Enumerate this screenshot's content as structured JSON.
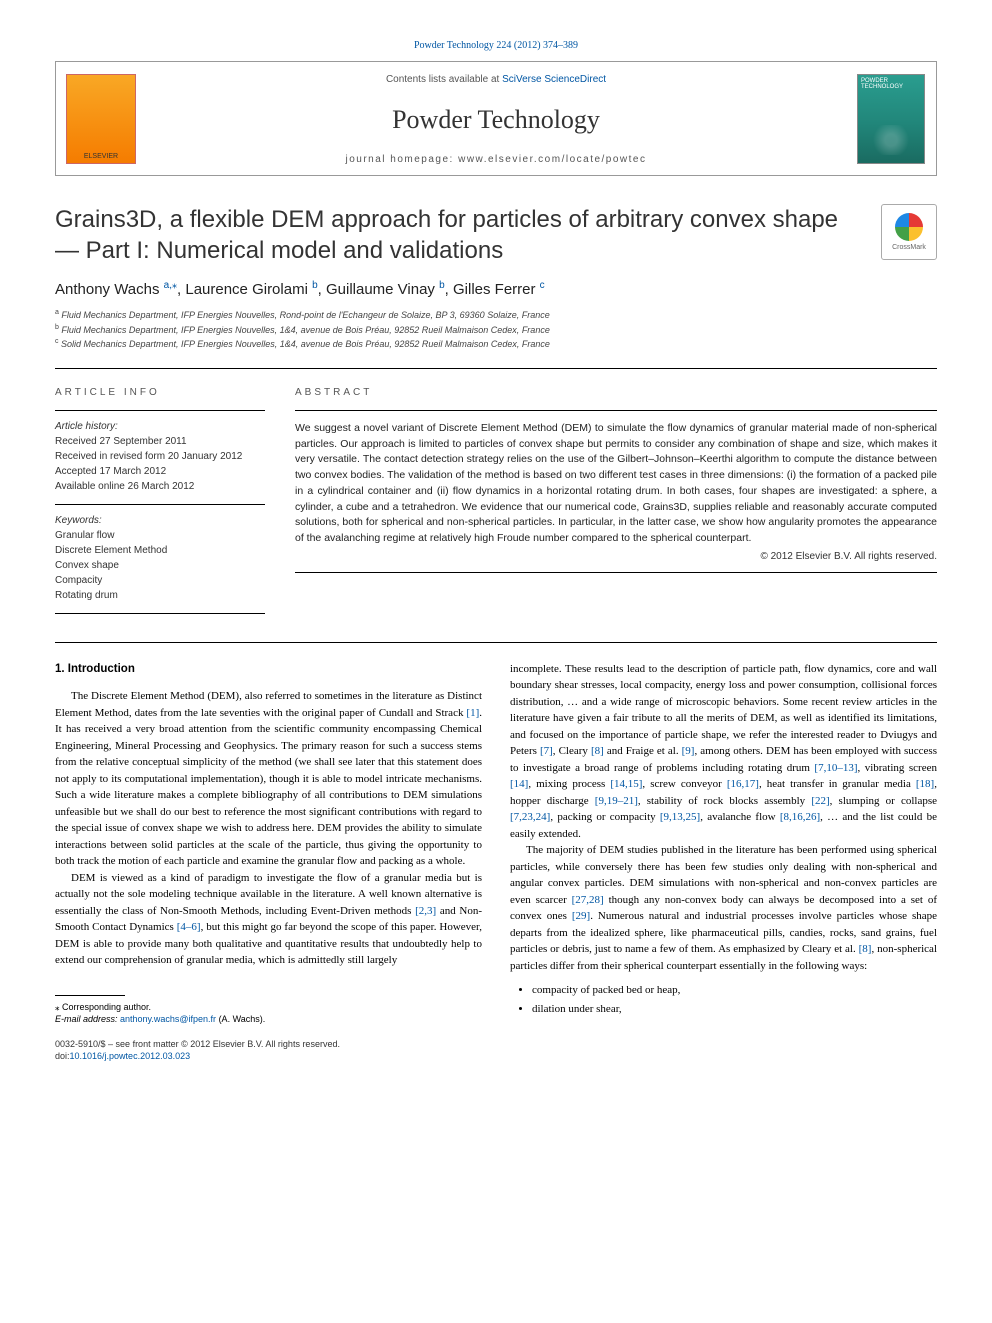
{
  "top_link": {
    "label": "Powder Technology 224 (2012) 374–389",
    "href": "#"
  },
  "header": {
    "elsevier_label": "ELSEVIER",
    "contents_prefix": "Contents lists available at ",
    "contents_link": "SciVerse ScienceDirect",
    "journal_name": "Powder Technology",
    "homepage_line": "journal homepage: www.elsevier.com/locate/powtec",
    "cover_text": "POWDER TECHNOLOGY"
  },
  "crossmark_label": "CrossMark",
  "title": "Grains3D, a flexible DEM approach for particles of arbitrary convex shape — Part I: Numerical model and validations",
  "authors_html": "Anthony Wachs <span class='sup'>a,</span><span class='star sup'>⁎</span>, Laurence Girolami <span class='sup'>b</span>, Guillaume Vinay <span class='sup'>b</span>, Gilles Ferrer <span class='sup'>c</span>",
  "affiliations": [
    {
      "sup": "a",
      "text": "Fluid Mechanics Department, IFP Energies Nouvelles, Rond-point de l'Echangeur de Solaize, BP 3, 69360 Solaize, France"
    },
    {
      "sup": "b",
      "text": "Fluid Mechanics Department, IFP Energies Nouvelles, 1&4, avenue de Bois Préau, 92852 Rueil Malmaison Cedex, France"
    },
    {
      "sup": "c",
      "text": "Solid Mechanics Department, IFP Energies Nouvelles, 1&4, avenue de Bois Préau, 92852 Rueil Malmaison Cedex, France"
    }
  ],
  "article_info": {
    "heading": "ARTICLE INFO",
    "history_label": "Article history:",
    "history": [
      "Received 27 September 2011",
      "Received in revised form 20 January 2012",
      "Accepted 17 March 2012",
      "Available online 26 March 2012"
    ],
    "keywords_label": "Keywords:",
    "keywords": [
      "Granular flow",
      "Discrete Element Method",
      "Convex shape",
      "Compacity",
      "Rotating drum"
    ]
  },
  "abstract": {
    "heading": "ABSTRACT",
    "text": "We suggest a novel variant of Discrete Element Method (DEM) to simulate the flow dynamics of granular material made of non-spherical particles. Our approach is limited to particles of convex shape but permits to consider any combination of shape and size, which makes it very versatile. The contact detection strategy relies on the use of the Gilbert–Johnson–Keerthi algorithm to compute the distance between two convex bodies. The validation of the method is based on two different test cases in three dimensions: (i) the formation of a packed pile in a cylindrical container and (ii) flow dynamics in a horizontal rotating drum. In both cases, four shapes are investigated: a sphere, a cylinder, a cube and a tetrahedron. We evidence that our numerical code, Grains3D, supplies reliable and reasonably accurate computed solutions, both for spherical and non-spherical particles. In particular, in the latter case, we show how angularity promotes the appearance of the avalanching regime at relatively high Froude number compared to the spherical counterpart.",
    "copyright": "© 2012 Elsevier B.V. All rights reserved."
  },
  "introduction": {
    "heading": "1. Introduction",
    "p1a": "The Discrete Element Method (DEM), also referred to sometimes in the literature as Distinct Element Method, dates from the late seventies with the original paper of Cundall and Strack ",
    "r1": "[1]",
    "p1b": ". It has received a very broad attention from the scientific community encompassing Chemical Engineering, Mineral Processing and Geophysics. The primary reason for such a success stems from the relative conceptual simplicity of the method (we shall see later that this statement does not apply to its computational implementation), though it is able to model intricate mechanisms. Such a wide literature makes a complete bibliography of all contributions to DEM simulations unfeasible but we shall do our best to reference the most significant contributions with regard to the special issue of convex shape we wish to address here. DEM provides the ability to simulate interactions between solid particles at the scale of the particle, thus giving the opportunity to both track the motion of each particle and examine the granular flow and packing as a whole.",
    "p2a": "DEM is viewed as a kind of paradigm to investigate the flow of a granular media but is actually not the sole modeling technique available in the literature. A well known alternative is essentially the class of Non-Smooth Methods, including Event-Driven methods ",
    "r2": "[2,3]",
    "p2b": " and Non-Smooth Contact Dynamics ",
    "r3": "[4–6]",
    "p2c": ", but this might go far beyond the scope of this paper. However, DEM is able to provide many both qualitative and quantitative results that undoubtedly help to extend our comprehension of granular media, which is admittedly still largely ",
    "p2d": "incomplete. These results lead to the description of particle path, flow dynamics, core and wall boundary shear stresses, local compacity, energy loss and power consumption, collisional forces distribution, … and a wide range of microscopic behaviors. Some recent review articles in the literature have given a fair tribute to all the merits of DEM, as well as identified its limitations, and focused on the importance of particle shape, we refer the interested reader to Dviugys and Peters ",
    "r4": "[7]",
    "p2e": ", Cleary ",
    "r5": "[8]",
    "p2f": " and Fraige et al. ",
    "r6": "[9]",
    "p2g": ", among others. DEM has been employed with success to investigate a broad range of problems including rotating drum ",
    "r7": "[7,10–13]",
    "p2h": ", vibrating screen ",
    "r8": "[14]",
    "p2i": ", mixing process ",
    "r9": "[14,15]",
    "p2j": ", screw conveyor ",
    "r10": "[16,17]",
    "p2k": ", heat transfer in granular media ",
    "r11": "[18]",
    "p2l": ", hopper discharge ",
    "r12": "[9,19–21]",
    "p2m": ", stability of rock blocks assembly ",
    "r13": "[22]",
    "p2n": ", slumping or collapse ",
    "r14": "[7,23,24]",
    "p2o": ", packing or compacity ",
    "r15": "[9,13,25]",
    "p2p": ", avalanche flow ",
    "r16": "[8,16,26]",
    "p2q": ", … and the list could be easily extended.",
    "p3a": "The majority of DEM studies published in the literature has been performed using spherical particles, while conversely there has been few studies only dealing with non-spherical and angular convex particles. DEM simulations with non-spherical and non-convex particles are even scarcer ",
    "r17": "[27,28]",
    "p3b": " though any non-convex body can always be decomposed into a set of convex ones ",
    "r18": "[29]",
    "p3c": ". Numerous natural and industrial processes involve particles whose shape departs from the idealized sphere, like pharmaceutical pills, candies, rocks, sand grains, fuel particles or debris, just to name a few of them. As emphasized by Cleary et al. ",
    "r19": "[8]",
    "p3d": ", non-spherical particles differ from their spherical counterpart essentially in the following ways:",
    "bullets": [
      "compacity of packed bed or heap,",
      "dilation under shear,"
    ]
  },
  "footnote": {
    "corr": "⁎ Corresponding author.",
    "email_label": "E-mail address: ",
    "email": "anthony.wachs@ifpen.fr",
    "email_suffix": " (A. Wachs)."
  },
  "footer": {
    "line1": "0032-5910/$ – see front matter © 2012 Elsevier B.V. All rights reserved.",
    "doi_label": "doi:",
    "doi": "10.1016/j.powtec.2012.03.023"
  },
  "colors": {
    "link": "#0056a3",
    "text": "#000000",
    "heading": "#333333"
  }
}
